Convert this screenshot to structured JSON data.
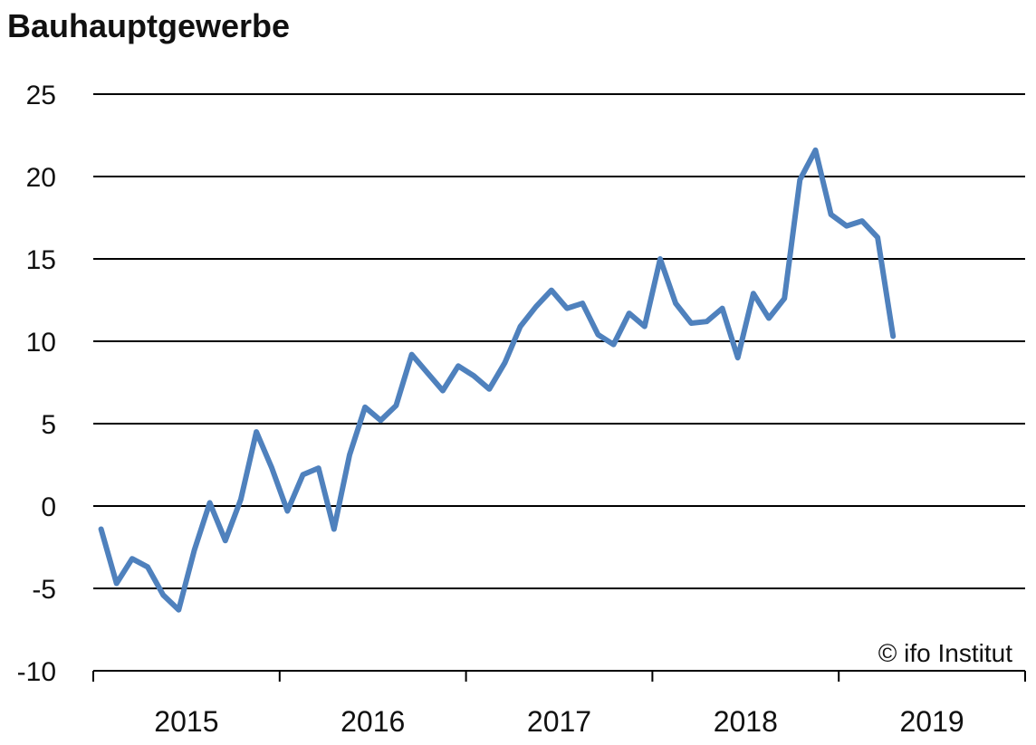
{
  "chart_data": {
    "type": "line",
    "title": "Bauhauptgewerbe",
    "xlabel": "",
    "ylabel": "",
    "ylim": [
      -10,
      25
    ],
    "yticks": [
      "25",
      "20",
      "15",
      "10",
      "5",
      "0",
      "-5",
      "-10"
    ],
    "ytick_values": [
      25,
      20,
      15,
      10,
      5,
      0,
      -5,
      -10
    ],
    "xticks": [
      "2015",
      "2016",
      "2017",
      "2018",
      "2019"
    ],
    "x_start": "2015-01",
    "grid": true,
    "legend": "none",
    "series": [
      {
        "color": "#4f81bd",
        "values": [
          -1.4,
          -4.7,
          -3.2,
          -3.7,
          -5.4,
          -6.3,
          -2.7,
          0.2,
          -2.1,
          0.4,
          4.5,
          2.3,
          -0.3,
          1.9,
          2.3,
          -1.4,
          3.1,
          6.0,
          5.2,
          6.1,
          9.2,
          8.1,
          7.0,
          8.5,
          7.9,
          7.1,
          8.7,
          10.9,
          12.1,
          13.1,
          12.0,
          12.3,
          10.4,
          9.8,
          11.7,
          10.9,
          15.0,
          12.3,
          11.1,
          11.2,
          12.0,
          9.0,
          12.9,
          11.4,
          12.6,
          19.8,
          21.6,
          17.7,
          17.0,
          17.3,
          16.3,
          10.3
        ]
      }
    ],
    "credit": "© ifo Institut"
  }
}
